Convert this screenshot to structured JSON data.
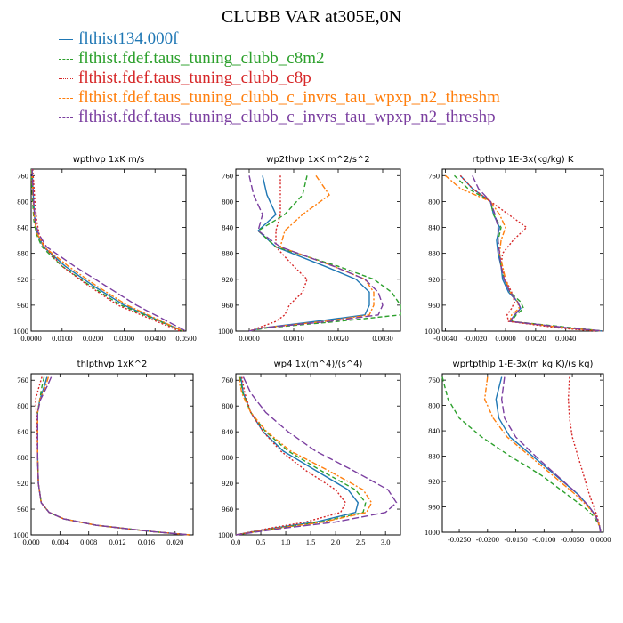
{
  "title": "CLUBB VAR at305E,0N",
  "legend": [
    {
      "label": "flthist134.000f",
      "color": "#1f77b4",
      "dash": "solid"
    },
    {
      "label": "flthist.fdef.taus_tuning_clubb_c8m2",
      "color": "#2ca02c",
      "dash": "dashed"
    },
    {
      "label": "flthist.fdef.taus_tuning_clubb_c8p",
      "color": "#d62728",
      "dash": "dotted"
    },
    {
      "label": "flthist.fdef.taus_tuning_clubb_c_invrs_tau_wpxp_n2_threshm",
      "color": "#ff7f0e",
      "dash": "dashdot"
    },
    {
      "label": "flthist.fdef.taus_tuning_clubb_c_invrs_tau_wpxp_n2_threshp",
      "color": "#7b3fa0",
      "dash": "longdash"
    }
  ],
  "chart_data": [
    {
      "type": "line",
      "title": "wpthvp  1xK m/s",
      "ylim": [
        1000,
        750
      ],
      "yticks": [
        "760",
        "800",
        "840",
        "880",
        "920",
        "960",
        "1000"
      ],
      "ytick_values": [
        760,
        800,
        840,
        880,
        920,
        960,
        1000
      ],
      "xlim": [
        0,
        0.05
      ],
      "xticks": [
        "0.0000",
        "0.0100",
        "0.0200",
        "0.0300",
        "0.0400",
        "0.0500"
      ],
      "xtick_values": [
        0,
        0.01,
        0.02,
        0.03,
        0.04,
        0.05
      ],
      "y": [
        750,
        770,
        800,
        830,
        850,
        870,
        900,
        930,
        960,
        1000
      ],
      "series": [
        {
          "values": [
            0.0003,
            0.0005,
            0.0008,
            0.0012,
            0.002,
            0.004,
            0.011,
            0.02,
            0.03,
            0.049
          ]
        },
        {
          "values": [
            0.0,
            0.0002,
            0.0005,
            0.0009,
            0.0017,
            0.0035,
            0.01,
            0.019,
            0.029,
            0.049
          ]
        },
        {
          "values": [
            0.0005,
            0.0008,
            0.0012,
            0.0018,
            0.0026,
            0.0043,
            0.01,
            0.0185,
            0.028,
            0.048
          ]
        },
        {
          "values": [
            0.0002,
            0.0004,
            0.0007,
            0.0011,
            0.002,
            0.0042,
            0.012,
            0.021,
            0.031,
            0.049
          ]
        },
        {
          "values": [
            0.0003,
            0.0005,
            0.0008,
            0.0013,
            0.0024,
            0.005,
            0.014,
            0.024,
            0.034,
            0.05
          ]
        }
      ]
    },
    {
      "type": "line",
      "title": "wp2thvp  1xK m^2/s^2",
      "ylim": [
        1000,
        750
      ],
      "yticks": [
        "760",
        "800",
        "840",
        "880",
        "920",
        "960",
        "1000"
      ],
      "ytick_values": [
        760,
        800,
        840,
        880,
        920,
        960,
        1000
      ],
      "xlim": [
        -0.0003,
        0.0034
      ],
      "xticks": [
        "0.0000",
        "0.0010",
        "0.0020",
        "0.0030"
      ],
      "xtick_values": [
        0,
        0.001,
        0.002,
        0.003
      ],
      "y": [
        760,
        790,
        820,
        845,
        870,
        900,
        920,
        940,
        960,
        975,
        985,
        995,
        1000
      ],
      "series": [
        {
          "values": [
            0.0003,
            0.0004,
            0.0006,
            0.0002,
            0.0006,
            0.0017,
            0.0024,
            0.0027,
            0.0027,
            0.0026,
            0.0015,
            0.0003,
            0.0
          ]
        },
        {
          "values": [
            0.0013,
            0.0012,
            0.0008,
            0.0002,
            0.0006,
            0.002,
            0.0028,
            0.0032,
            0.0034,
            0.0034,
            0.002,
            0.0004,
            0.0
          ]
        },
        {
          "values": [
            0.0007,
            0.0007,
            0.0007,
            0.0006,
            0.0006,
            0.001,
            0.0013,
            0.0012,
            0.0009,
            0.0008,
            0.0006,
            0.0002,
            0.0
          ]
        },
        {
          "values": [
            0.0015,
            0.0018,
            0.0012,
            0.0008,
            0.0007,
            0.0019,
            0.0026,
            0.0028,
            0.0028,
            0.0027,
            0.0017,
            0.0003,
            0.0
          ]
        },
        {
          "values": [
            0.0,
            0.0001,
            0.0003,
            0.0002,
            0.0007,
            0.0019,
            0.0026,
            0.0029,
            0.003,
            0.0029,
            0.0018,
            0.0003,
            0.0
          ]
        }
      ]
    },
    {
      "type": "line",
      "title": "rtpthvp  1E-3x(kg/kg) K",
      "ylim": [
        1000,
        750
      ],
      "yticks": [
        "760",
        "800",
        "840",
        "880",
        "920",
        "960",
        "1000"
      ],
      "ytick_values": [
        760,
        800,
        840,
        880,
        920,
        960,
        1000
      ],
      "xlim": [
        -0.0042,
        0.0065
      ],
      "xticks": [
        "-0.0040",
        "-0.0020",
        "0.0000",
        "0.0020",
        "0.0040"
      ],
      "xtick_values": [
        -0.004,
        -0.002,
        0,
        0.002,
        0.004
      ],
      "y": [
        760,
        780,
        800,
        820,
        840,
        860,
        880,
        900,
        920,
        940,
        955,
        965,
        975,
        985,
        995,
        1000
      ],
      "series": [
        {
          "values": [
            -0.003,
            -0.0022,
            -0.001,
            -0.0008,
            -0.0004,
            -0.0006,
            -0.0005,
            -0.0003,
            -0.0002,
            0.0002,
            0.0008,
            0.001,
            0.0006,
            0.0003,
            0.004,
            0.0065
          ]
        },
        {
          "values": [
            -0.0034,
            -0.0025,
            -0.001,
            -0.0008,
            -0.0003,
            -0.0005,
            -0.0004,
            -0.0003,
            -0.0001,
            0.0003,
            0.001,
            0.0012,
            0.0007,
            0.0004,
            0.0045,
            0.0065
          ]
        },
        {
          "values": [
            -0.003,
            -0.0022,
            -0.001,
            0.0002,
            0.0014,
            0.0005,
            -0.0002,
            -0.0003,
            0.0,
            0.0004,
            0.0006,
            0.0004,
            0.0001,
            0.0002,
            0.0035,
            0.006
          ]
        },
        {
          "values": [
            -0.004,
            -0.003,
            -0.001,
            -0.0004,
            0.0,
            -0.0003,
            -0.0004,
            -0.0002,
            0.0,
            0.0003,
            0.0008,
            0.0009,
            0.0004,
            0.0003,
            0.004,
            0.0065
          ]
        },
        {
          "values": [
            -0.0022,
            -0.0018,
            -0.001,
            -0.0007,
            -0.0005,
            -0.0005,
            -0.0004,
            -0.0003,
            -0.0001,
            0.0003,
            0.0008,
            0.001,
            0.0006,
            0.0003,
            0.0042,
            0.0065
          ]
        }
      ]
    },
    {
      "type": "line",
      "title": "thlpthvp  1xK^2",
      "ylim": [
        1000,
        750
      ],
      "yticks": [
        "760",
        "800",
        "840",
        "880",
        "920",
        "960",
        "1000"
      ],
      "ytick_values": [
        760,
        800,
        840,
        880,
        920,
        960,
        1000
      ],
      "xlim": [
        0,
        0.0225
      ],
      "xticks": [
        "0.000",
        "0.004",
        "0.008",
        "0.012",
        "0.016",
        "0.020"
      ],
      "xtick_values": [
        0,
        0.004,
        0.008,
        0.012,
        0.016,
        0.02
      ],
      "y": [
        755,
        770,
        790,
        810,
        840,
        880,
        920,
        950,
        965,
        975,
        985,
        995,
        1000
      ],
      "series": [
        {
          "values": [
            0.0022,
            0.0018,
            0.0012,
            0.0009,
            0.0009,
            0.0009,
            0.001,
            0.0014,
            0.0025,
            0.0045,
            0.009,
            0.017,
            0.022
          ]
        },
        {
          "values": [
            0.0018,
            0.0015,
            0.0012,
            0.0009,
            0.0009,
            0.0009,
            0.001,
            0.0014,
            0.0025,
            0.0045,
            0.009,
            0.017,
            0.022
          ]
        },
        {
          "values": [
            0.0015,
            0.0011,
            0.0006,
            0.0007,
            0.0008,
            0.0009,
            0.001,
            0.0014,
            0.0025,
            0.0045,
            0.009,
            0.017,
            0.022
          ]
        },
        {
          "values": [
            0.0024,
            0.002,
            0.0012,
            0.0009,
            0.0009,
            0.0009,
            0.001,
            0.0014,
            0.0025,
            0.0045,
            0.009,
            0.017,
            0.022
          ]
        },
        {
          "values": [
            0.0028,
            0.0022,
            0.0013,
            0.0009,
            0.0009,
            0.0009,
            0.001,
            0.0014,
            0.0025,
            0.0045,
            0.009,
            0.017,
            0.022
          ]
        }
      ]
    },
    {
      "type": "line",
      "title": "wp4  1x(m^4)/(s^4)",
      "ylim": [
        1000,
        750
      ],
      "yticks": [
        "760",
        "800",
        "840",
        "880",
        "920",
        "960",
        "1000"
      ],
      "ytick_values": [
        760,
        800,
        840,
        880,
        920,
        960,
        1000
      ],
      "xlim": [
        0,
        3.3
      ],
      "xticks": [
        "0.0",
        "0.5",
        "1.0",
        "1.5",
        "2.0",
        "2.5",
        "3.0"
      ],
      "xtick_values": [
        0,
        0.5,
        1.0,
        1.5,
        2.0,
        2.5,
        3.0
      ],
      "y": [
        755,
        780,
        810,
        840,
        870,
        900,
        930,
        950,
        965,
        980,
        990,
        1000
      ],
      "series": [
        {
          "values": [
            0.1,
            0.15,
            0.3,
            0.55,
            0.95,
            1.6,
            2.25,
            2.45,
            2.4,
            1.6,
            0.7,
            0.0
          ]
        },
        {
          "values": [
            0.08,
            0.14,
            0.3,
            0.6,
            1.05,
            1.7,
            2.4,
            2.6,
            2.55,
            1.7,
            0.8,
            0.0
          ]
        },
        {
          "values": [
            0.12,
            0.18,
            0.3,
            0.55,
            0.9,
            1.4,
            2.0,
            2.2,
            2.1,
            1.4,
            0.65,
            0.0
          ]
        },
        {
          "values": [
            0.06,
            0.12,
            0.3,
            0.62,
            1.1,
            1.85,
            2.55,
            2.72,
            2.62,
            1.75,
            0.8,
            0.0
          ]
        },
        {
          "values": [
            0.15,
            0.3,
            0.6,
            1.05,
            1.6,
            2.35,
            3.05,
            3.22,
            3.0,
            2.0,
            0.9,
            0.0
          ]
        }
      ]
    },
    {
      "type": "line",
      "title": "wprtpthlp  1-E-3x(m kg K)/(s kg)",
      "ylim": [
        1000,
        750
      ],
      "yticks": [
        "760",
        "800",
        "840",
        "880",
        "920",
        "960",
        "1000"
      ],
      "ytick_values": [
        760,
        800,
        840,
        880,
        920,
        960,
        1000
      ],
      "xlim": [
        -0.028,
        0.0005
      ],
      "xticks": [
        "-0.0250",
        "-0.0200",
        "-0.0150",
        "-0.0100",
        "-0.0050",
        "0.0000"
      ],
      "xtick_values": [
        -0.025,
        -0.02,
        -0.015,
        -0.01,
        -0.005,
        0
      ],
      "y": [
        755,
        790,
        820,
        850,
        880,
        910,
        940,
        960,
        975,
        990,
        1000
      ],
      "series": [
        {
          "values": [
            -0.0175,
            -0.0185,
            -0.018,
            -0.016,
            -0.012,
            -0.008,
            -0.004,
            -0.002,
            -0.0008,
            -0.0002,
            0.0
          ]
        },
        {
          "values": [
            -0.028,
            -0.027,
            -0.025,
            -0.021,
            -0.016,
            -0.0105,
            -0.006,
            -0.003,
            -0.0012,
            -0.0002,
            0.0
          ]
        },
        {
          "values": [
            -0.0055,
            -0.0057,
            -0.0055,
            -0.005,
            -0.004,
            -0.003,
            -0.002,
            -0.0012,
            -0.0006,
            -0.0002,
            0.0
          ]
        },
        {
          "values": [
            -0.02,
            -0.0205,
            -0.019,
            -0.0165,
            -0.0125,
            -0.0085,
            -0.0045,
            -0.0022,
            -0.0009,
            -0.0002,
            0.0
          ]
        },
        {
          "values": [
            -0.017,
            -0.0175,
            -0.017,
            -0.015,
            -0.0115,
            -0.0078,
            -0.004,
            -0.002,
            -0.0008,
            -0.0002,
            0.0
          ]
        }
      ]
    }
  ]
}
